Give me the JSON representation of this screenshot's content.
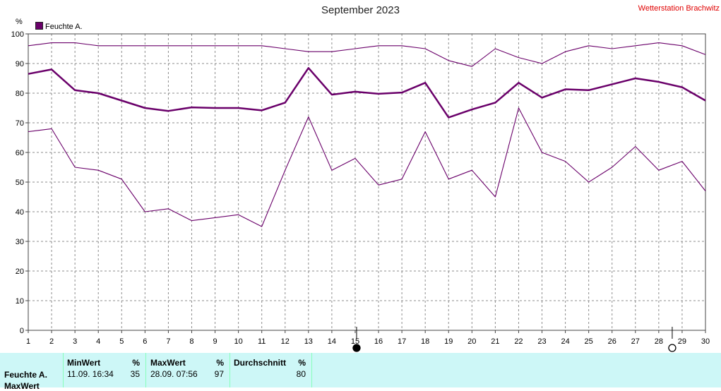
{
  "title": "September 2023",
  "station": "Wetterstation Brachwitz",
  "legend_label": "Feuchte A.",
  "unit": "%",
  "colors": {
    "series": "#6a006a",
    "grid": "#8c8c8c",
    "panel_bg": "#cdf7f7"
  },
  "chart_data": {
    "type": "line",
    "title": "September 2023",
    "x": [
      1,
      2,
      3,
      4,
      5,
      6,
      7,
      8,
      9,
      10,
      11,
      12,
      13,
      14,
      15,
      16,
      17,
      18,
      19,
      20,
      21,
      22,
      23,
      24,
      25,
      26,
      27,
      28,
      29,
      30
    ],
    "series": [
      {
        "name": "Feuchte A.",
        "role": "max",
        "values": [
          96,
          97,
          97,
          96,
          96,
          96,
          96,
          96,
          96,
          96,
          96,
          95,
          94,
          94,
          95,
          96,
          96,
          95,
          91,
          89,
          95,
          92,
          90,
          94,
          96,
          95,
          96,
          97,
          96,
          93
        ]
      },
      {
        "name": "Feuchte A.",
        "role": "avg",
        "values": [
          86.5,
          88,
          81,
          80,
          77.5,
          75,
          74,
          75.2,
          75,
          75,
          74.2,
          76.8,
          88.5,
          79.5,
          80.5,
          79.8,
          80.2,
          83.5,
          71.8,
          74.5,
          76.8,
          83.5,
          78.5,
          81.3,
          81,
          83,
          85,
          83.8,
          82,
          77.5
        ]
      },
      {
        "name": "Feuchte A.",
        "role": "min",
        "values": [
          67,
          68,
          55,
          54,
          51,
          40,
          41,
          37,
          38,
          39,
          35,
          54,
          72,
          54,
          58,
          49,
          51,
          67,
          51,
          54,
          45,
          75,
          60,
          57,
          50,
          55,
          62,
          54,
          57,
          47
        ]
      }
    ],
    "ylim": [
      0,
      100
    ],
    "yticks": [
      0,
      10,
      20,
      30,
      40,
      50,
      60,
      70,
      80,
      90,
      100
    ],
    "xlim": [
      1,
      30
    ],
    "grid": true,
    "legend": "top-left",
    "markers": [
      {
        "day": 15,
        "symbol": "new-moon"
      },
      {
        "day": 29,
        "symbol": "full-moon"
      }
    ]
  },
  "stats": {
    "row_label": "Feuchte A.",
    "row_label2": "MaxWert",
    "min_header": "MinWert",
    "min_unit": "%",
    "min_time": "11.09.  16:34",
    "min_value": "35",
    "max_header": "MaxWert",
    "max_unit": "%",
    "max_time": "28.09.  07:56",
    "max_value": "97",
    "avg_header": "Durchschnitt",
    "avg_unit": "%",
    "avg_value": "80"
  }
}
